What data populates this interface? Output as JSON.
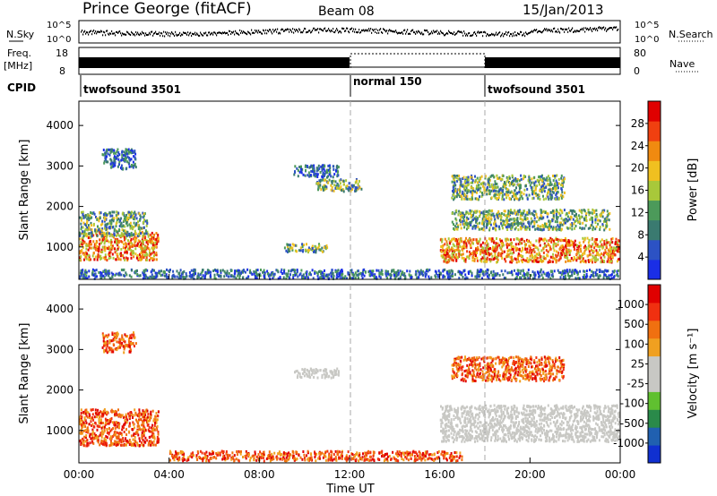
{
  "header": {
    "station": "Prince George (fitACF)",
    "beam": "Beam 08",
    "date": "15/Jan/2013"
  },
  "noise_panel": {
    "left_label": "N.Sky",
    "left_ticks": [
      "10^5",
      "10^0"
    ],
    "right_label": "N.Search",
    "right_ticks": [
      "10^5",
      "10^0"
    ]
  },
  "freq_panel": {
    "left_label": "Freq.",
    "left_unit": "[MHz]",
    "left_ticks": [
      "18",
      "8"
    ],
    "right_label": "Nave",
    "right_ticks": [
      "80",
      "0"
    ]
  },
  "cpid_panel": {
    "label": "CPID",
    "segments": [
      {
        "name": "twofsound 3501",
        "start_h": 0,
        "end_h": 12
      },
      {
        "name": "normal 150",
        "start_h": 12,
        "end_h": 18
      },
      {
        "name": "twofsound 3501",
        "start_h": 18,
        "end_h": 24
      }
    ]
  },
  "colors": {
    "power_scale": [
      "#1a2ee6",
      "#2c52c4",
      "#3a7a70",
      "#4c9a5a",
      "#a8c83a",
      "#f0c020",
      "#f08a10",
      "#f04010",
      "#e00000"
    ],
    "velocity_scale": [
      "#1030d0",
      "#2060b0",
      "#2a8a4a",
      "#60c030",
      "#c8c8c4",
      "#c8c8c4",
      "#f0a020",
      "#f07010",
      "#f03010",
      "#e00000"
    ]
  },
  "chart_data": [
    {
      "type": "heatmap",
      "title": "",
      "xlabel": "",
      "ylabel": "Slant Range [km]",
      "xlim": [
        0,
        24
      ],
      "ylim": [
        200,
        4600
      ],
      "y_ticks": [
        "4000",
        "3000",
        "2000",
        "1000"
      ],
      "colorbar": {
        "label": "Power [dB]",
        "ticks": [
          "28",
          "24",
          "20",
          "16",
          "12",
          "8",
          "4"
        ]
      },
      "scatter_regions": [
        {
          "t_start": 0.0,
          "t_end": 3.5,
          "r_center": 1050,
          "r_width": 350,
          "level": "high"
        },
        {
          "t_start": 0.0,
          "t_end": 3.0,
          "r_center": 1600,
          "r_width": 300,
          "level": "medium"
        },
        {
          "t_start": 1.0,
          "t_end": 2.5,
          "r_center": 3200,
          "r_width": 250,
          "level": "low"
        },
        {
          "t_start": 9.5,
          "t_end": 11.5,
          "r_center": 2900,
          "r_width": 150,
          "level": "low"
        },
        {
          "t_start": 10.5,
          "t_end": 12.5,
          "r_center": 2550,
          "r_width": 150,
          "level": "medium"
        },
        {
          "t_start": 9.0,
          "t_end": 11.0,
          "r_center": 1000,
          "r_width": 100,
          "level": "medium"
        },
        {
          "t_start": 16.0,
          "t_end": 24.0,
          "r_center": 950,
          "r_width": 300,
          "level": "high"
        },
        {
          "t_start": 16.5,
          "t_end": 23.5,
          "r_center": 1700,
          "r_width": 250,
          "level": "medium"
        },
        {
          "t_start": 16.5,
          "t_end": 21.5,
          "r_center": 2500,
          "r_width": 300,
          "level": "medium"
        },
        {
          "t_start": 0.0,
          "t_end": 24.0,
          "r_center": 350,
          "r_width": 120,
          "level": "low"
        }
      ]
    },
    {
      "type": "heatmap",
      "title": "",
      "xlabel": "Time UT",
      "ylabel": "Slant Range [km]",
      "xlim": [
        0,
        24
      ],
      "ylim": [
        200,
        4600
      ],
      "x_ticks": [
        "00:00",
        "04:00",
        "08:00",
        "12:00",
        "16:00",
        "20:00",
        "00:00"
      ],
      "y_ticks": [
        "4000",
        "3000",
        "2000",
        "1000"
      ],
      "colorbar": {
        "label": "Velocity [m s⁻¹]",
        "ticks": [
          "1000",
          "500",
          "100",
          "25",
          "-25",
          "-100",
          "-500",
          "-1000"
        ]
      },
      "scatter_regions": [
        {
          "t_start": 0.0,
          "t_end": 3.5,
          "r_center": 1100,
          "r_width": 450,
          "level": "neg"
        },
        {
          "t_start": 1.0,
          "t_end": 2.5,
          "r_center": 3200,
          "r_width": 250,
          "level": "neg"
        },
        {
          "t_start": 9.5,
          "t_end": 11.5,
          "r_center": 2450,
          "r_width": 120,
          "level": "zero"
        },
        {
          "t_start": 16.0,
          "t_end": 24.0,
          "r_center": 1200,
          "r_width": 450,
          "level": "zero"
        },
        {
          "t_start": 16.5,
          "t_end": 21.5,
          "r_center": 2550,
          "r_width": 300,
          "level": "neg"
        },
        {
          "t_start": 4.0,
          "t_end": 17.0,
          "r_center": 400,
          "r_width": 120,
          "level": "neg"
        }
      ]
    }
  ]
}
